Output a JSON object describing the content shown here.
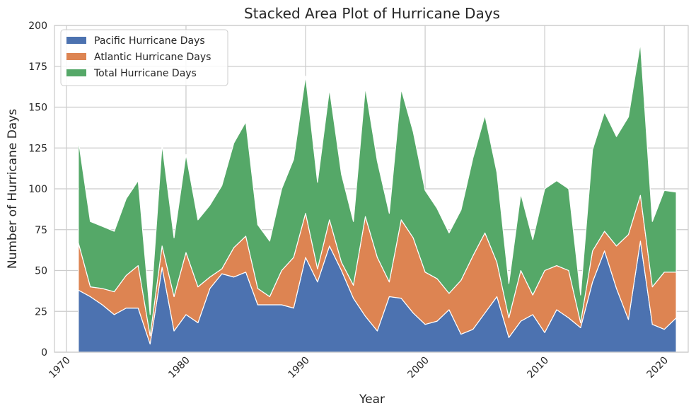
{
  "chart_data": {
    "type": "area",
    "stacked": true,
    "title": "Stacked Area Plot of Hurricane Days",
    "xlabel": "Year",
    "ylabel": "Number of Hurricane Days",
    "xlim": [
      1969,
      2022
    ],
    "ylim": [
      0,
      200
    ],
    "xticks": [
      "1970",
      "1980",
      "1990",
      "2000",
      "2010",
      "2020"
    ],
    "yticks": [
      "0",
      "25",
      "50",
      "75",
      "100",
      "125",
      "150",
      "175",
      "200"
    ],
    "grid": true,
    "legend_position": "top-left",
    "x": [
      1971,
      1972,
      1973,
      1974,
      1975,
      1976,
      1977,
      1978,
      1979,
      1980,
      1981,
      1982,
      1983,
      1984,
      1985,
      1986,
      1987,
      1988,
      1989,
      1990,
      1991,
      1992,
      1993,
      1994,
      1995,
      1996,
      1997,
      1998,
      1999,
      2000,
      2001,
      2002,
      2003,
      2004,
      2005,
      2006,
      2007,
      2008,
      2009,
      2010,
      2011,
      2012,
      2013,
      2014,
      2015,
      2016,
      2017,
      2018,
      2019,
      2020,
      2021
    ],
    "series": [
      {
        "name": "Pacific Hurricane Days",
        "color": "#4c72b0",
        "values": [
          38,
          34,
          29,
          23,
          27,
          27,
          5,
          52,
          13,
          23,
          18,
          39,
          48,
          46,
          49,
          29,
          29,
          29,
          27,
          58,
          43,
          65,
          50,
          33,
          22,
          13,
          34,
          33,
          24,
          17,
          19,
          26,
          11,
          14,
          24,
          34,
          9,
          19,
          23,
          12,
          26,
          21,
          15,
          43,
          62,
          39,
          20,
          68,
          17,
          14,
          21
        ]
      },
      {
        "name": "Atlantic Hurricane Days",
        "color": "#dd8452",
        "values": [
          29,
          6,
          10,
          14,
          20,
          26,
          5,
          13,
          21,
          38,
          22,
          7,
          3,
          18,
          22,
          10,
          5,
          21,
          31,
          27,
          8,
          16,
          5,
          8,
          61,
          45,
          9,
          48,
          46,
          32,
          26,
          10,
          33,
          45,
          49,
          21,
          12,
          31,
          12,
          38,
          27,
          29,
          3,
          19,
          12,
          26,
          52,
          28,
          23,
          35,
          28
        ]
      },
      {
        "name": "Total Hurricane Days",
        "color": "#55a868",
        "values": [
          63,
          40,
          38,
          37,
          47,
          52,
          13,
          62,
          36,
          60,
          41,
          44,
          51,
          64,
          70,
          39,
          34,
          50,
          60,
          84,
          53,
          80,
          54,
          39,
          79,
          59,
          42,
          80,
          65,
          50,
          43,
          37,
          43,
          60,
          72,
          55,
          21,
          47,
          34,
          50,
          52,
          50,
          17,
          62,
          73,
          67,
          72,
          93,
          40,
          50,
          49
        ]
      }
    ]
  }
}
